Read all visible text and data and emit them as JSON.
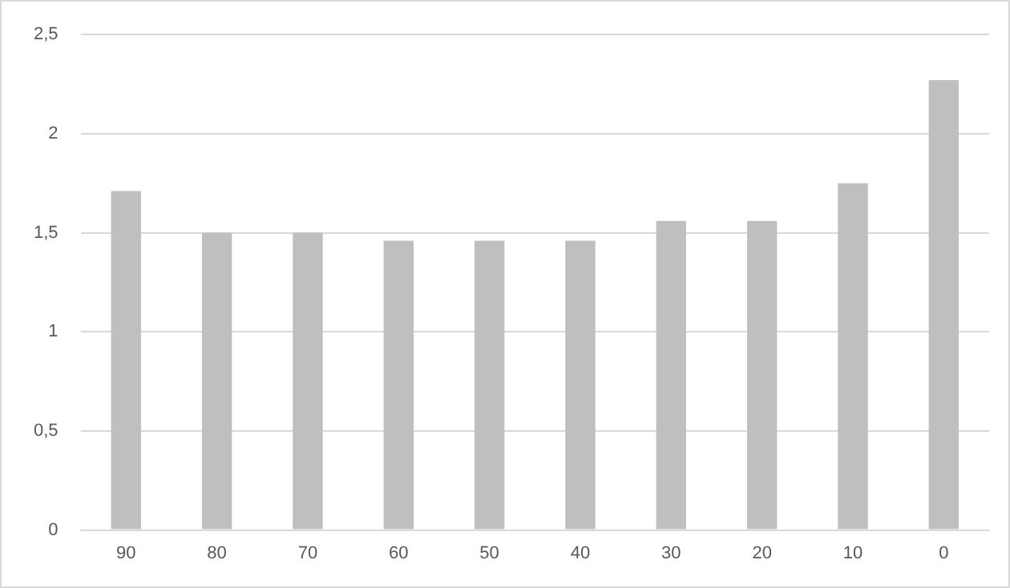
{
  "chart_data": {
    "type": "bar",
    "categories": [
      "90",
      "80",
      "70",
      "60",
      "50",
      "40",
      "30",
      "20",
      "10",
      "0"
    ],
    "values": [
      1.71,
      1.5,
      1.5,
      1.46,
      1.46,
      1.46,
      1.56,
      1.56,
      1.75,
      2.27
    ],
    "color": "#bfbfbf",
    "ylim": [
      0,
      2.5
    ],
    "yticks": [
      0,
      {
        "value": 0.5,
        "label": "0,5"
      },
      1,
      {
        "value": 1.5,
        "label": "1,5"
      },
      2,
      {
        "value": 2.5,
        "label": "2,5"
      }
    ],
    "grid": "y"
  }
}
